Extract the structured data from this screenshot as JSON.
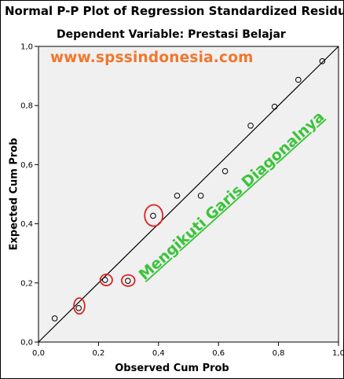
{
  "chart_data": {
    "type": "scatter",
    "title": "Normal P-P Plot of Regression Standardized Residual",
    "subtitle": "Dependent Variable: Prestasi Belajar",
    "xlabel": "Observed Cum Prob",
    "ylabel": "Expected Cum Prob",
    "xlim": [
      0,
      1
    ],
    "ylim": [
      0,
      1
    ],
    "x_tick_labels": [
      "0,0",
      "0,2",
      "0,4",
      "0,6",
      "0,8",
      "1,0"
    ],
    "y_tick_labels": [
      "0,0",
      "0,2",
      "0,4",
      "0,6",
      "0,8",
      "1,0"
    ],
    "ticks": [
      0,
      0.2,
      0.4,
      0.6,
      0.8,
      1.0
    ],
    "reference_line": {
      "from": [
        0,
        0
      ],
      "to": [
        1,
        1
      ]
    },
    "points": [
      {
        "x": 0.054,
        "y": 0.08
      },
      {
        "x": 0.134,
        "y": 0.115
      },
      {
        "x": 0.222,
        "y": 0.21
      },
      {
        "x": 0.298,
        "y": 0.207
      },
      {
        "x": 0.382,
        "y": 0.427
      },
      {
        "x": 0.462,
        "y": 0.495
      },
      {
        "x": 0.541,
        "y": 0.495
      },
      {
        "x": 0.622,
        "y": 0.578
      },
      {
        "x": 0.707,
        "y": 0.732
      },
      {
        "x": 0.787,
        "y": 0.796
      },
      {
        "x": 0.866,
        "y": 0.887
      },
      {
        "x": 0.946,
        "y": 0.95
      }
    ],
    "highlighted_points": [
      {
        "x": 0.136,
        "y": 0.122,
        "rx": 0.018,
        "ry": 0.027
      },
      {
        "x": 0.226,
        "y": 0.21,
        "rx": 0.02,
        "ry": 0.019
      },
      {
        "x": 0.299,
        "y": 0.208,
        "rx": 0.022,
        "ry": 0.019
      },
      {
        "x": 0.384,
        "y": 0.428,
        "rx": 0.03,
        "ry": 0.036
      }
    ],
    "annotation": {
      "text": "Mengikuti Garis Diagonalnya",
      "color": "#3cc33c",
      "angle": -42
    },
    "watermark": {
      "text": "www.spssindonesia.com",
      "color": "#f0772d"
    },
    "background": "#f0f0f0",
    "point_color": "#000000",
    "highlight_color": "#e02020",
    "grid": false
  }
}
